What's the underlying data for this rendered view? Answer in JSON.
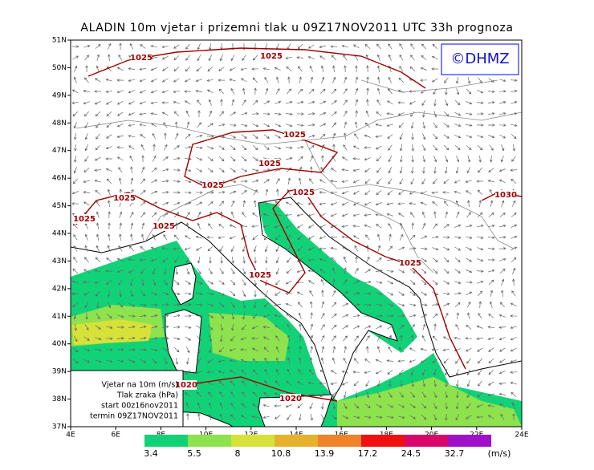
{
  "header": {
    "title": "ALADIN 10m vjetar i prizemni tlak u 09Z17NOV2011 UTC 33h prognoza"
  },
  "logo": "©DHMZ",
  "axes": {
    "lat_labels": [
      "51N",
      "50N",
      "49N",
      "48N",
      "47N",
      "46N",
      "45N",
      "44N",
      "43N",
      "42N",
      "41N",
      "40N",
      "39N",
      "38N",
      "37N"
    ],
    "lon_labels": [
      "4E",
      "6E",
      "8E",
      "10E",
      "12E",
      "14E",
      "16E",
      "18E",
      "20E",
      "22E",
      "24E"
    ]
  },
  "isobar_labels": [
    "1025",
    "1025",
    "1025",
    "1025",
    "1025",
    "1025",
    "1025",
    "1025",
    "1025",
    "1025",
    "1025",
    "1020",
    "1020",
    "1030"
  ],
  "info_box": [
    "Vjetar na 10m (m/s)",
    "Tlak zraka (hPa)",
    "start 00z16nov2011",
    "termin 09Z17NOV2011"
  ],
  "legend": {
    "levels": [
      3.4,
      5.5,
      8,
      10.8,
      13.9,
      17.2,
      24.5,
      32.7
    ],
    "colors": [
      "#12d278",
      "#8ee24e",
      "#d6e23a",
      "#e6b22e",
      "#f0822a",
      "#f01010",
      "#d8086a",
      "#a010c8"
    ],
    "unit": "(m/s)"
  }
}
